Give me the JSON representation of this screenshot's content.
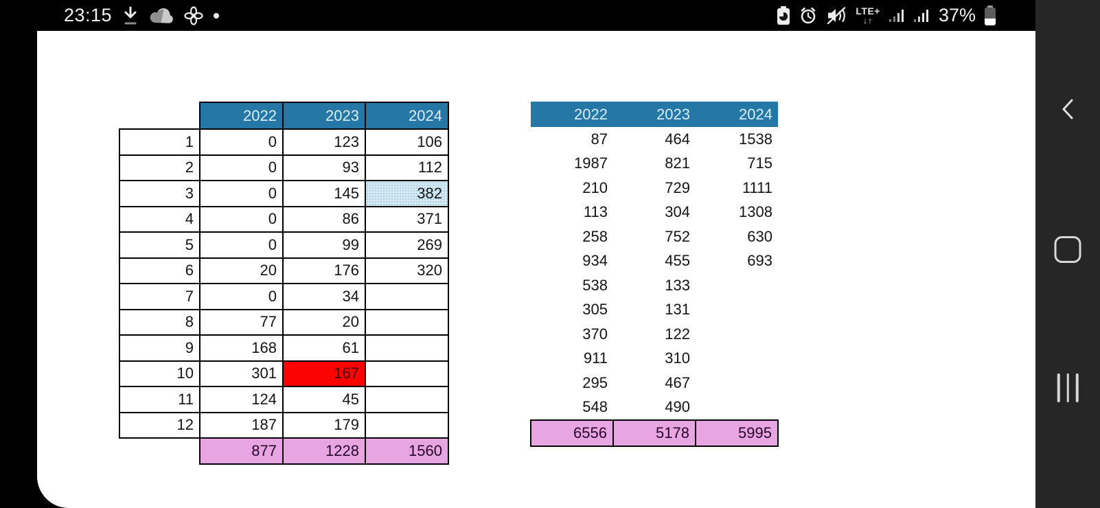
{
  "status_bar": {
    "time": "23:15",
    "battery_percent": "37%",
    "network": {
      "type": "LTE+",
      "arrows": "↓↑"
    },
    "left_icon_names": [
      "download-icon",
      "onedrive-cloud-icon",
      "pinwheel-icon",
      "notification-dot-icon"
    ],
    "right_icon_names": [
      "battery-saver-icon",
      "alarm-icon",
      "mute-vibrate-icon",
      "network-type-indicator",
      "signal-strength-icon-sim1",
      "signal-strength-icon-sim2",
      "battery-icon"
    ]
  },
  "nav_bar": {
    "buttons": [
      "back",
      "home",
      "recents"
    ]
  },
  "sheet": {
    "tables": [
      {
        "id": "left",
        "has_row_labels": true,
        "columns": [
          "2022",
          "2023",
          "2024"
        ],
        "row_labels": [
          "1",
          "2",
          "3",
          "4",
          "5",
          "6",
          "7",
          "8",
          "9",
          "10",
          "11",
          "12"
        ],
        "rows": [
          [
            "0",
            "123",
            "106"
          ],
          [
            "0",
            "93",
            "112"
          ],
          [
            "0",
            "145",
            "382"
          ],
          [
            "0",
            "86",
            "371"
          ],
          [
            "0",
            "99",
            "269"
          ],
          [
            "20",
            "176",
            "320"
          ],
          [
            "0",
            "34",
            ""
          ],
          [
            "77",
            "20",
            ""
          ],
          [
            "168",
            "61",
            ""
          ],
          [
            "301",
            "167",
            ""
          ],
          [
            "124",
            "45",
            ""
          ],
          [
            "187",
            "179",
            ""
          ]
        ],
        "totals": [
          "877",
          "1228",
          "1560"
        ],
        "highlights": [
          {
            "row": 2,
            "col": 2,
            "style": "dotted-blue"
          },
          {
            "row": 9,
            "col": 1,
            "style": "red"
          }
        ]
      },
      {
        "id": "right",
        "has_row_labels": false,
        "columns": [
          "2022",
          "2023",
          "2024"
        ],
        "rows": [
          [
            "87",
            "464",
            "1538"
          ],
          [
            "1987",
            "821",
            "715"
          ],
          [
            "210",
            "729",
            "1111"
          ],
          [
            "113",
            "304",
            "1308"
          ],
          [
            "258",
            "752",
            "630"
          ],
          [
            "934",
            "455",
            "693"
          ],
          [
            "538",
            "133",
            ""
          ],
          [
            "305",
            "131",
            ""
          ],
          [
            "370",
            "122",
            ""
          ],
          [
            "911",
            "310",
            ""
          ],
          [
            "295",
            "467",
            ""
          ],
          [
            "548",
            "490",
            ""
          ]
        ],
        "totals": [
          "6556",
          "5178",
          "5995"
        ]
      }
    ]
  },
  "colors": {
    "status_bg": "#000000",
    "nav_bg": "#262626",
    "page_bg": "#ffffff",
    "grid": "#000000",
    "header_blue": "#2577a5",
    "header_text": "#d9eef8",
    "total_pink": "#e7a5e2",
    "total_text": "#26032a",
    "highlight_red": "#fb0300",
    "red_text": "#4a0000",
    "pattern_bg": "#d4eaf4",
    "pattern_dot": "#a3cbdf"
  }
}
